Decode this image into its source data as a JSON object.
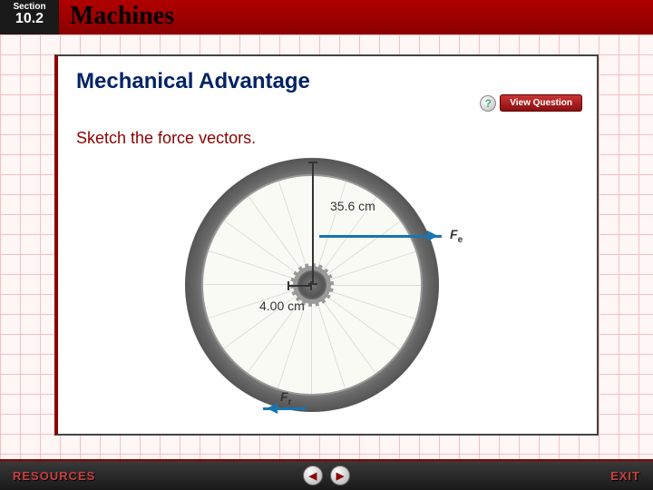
{
  "header": {
    "section_label": "Section",
    "section_number": "10.2",
    "chapter_title": "Machines"
  },
  "content": {
    "heading": "Mechanical Advantage",
    "view_question_label": "View Question",
    "question_icon": "?",
    "instruction": "Sketch the force vectors."
  },
  "figure": {
    "type": "diagram",
    "subject": "bicycle-wheel",
    "outer_radius_label": "35.6 cm",
    "inner_radius_label": "4.00 cm",
    "force_e_label": "F",
    "force_e_sub": "e",
    "force_r_label": "F",
    "force_r_sub": "r",
    "colors": {
      "arrow": "#1a74b0",
      "tire": "#666666",
      "rim": "#fafaf5",
      "heading": "#002366",
      "accent": "#8b0000"
    },
    "spoke_count": 20
  },
  "footer": {
    "resources_label": "RESOURCES",
    "exit_label": "EXIT",
    "prev_glyph": "◀",
    "next_glyph": "▶"
  }
}
